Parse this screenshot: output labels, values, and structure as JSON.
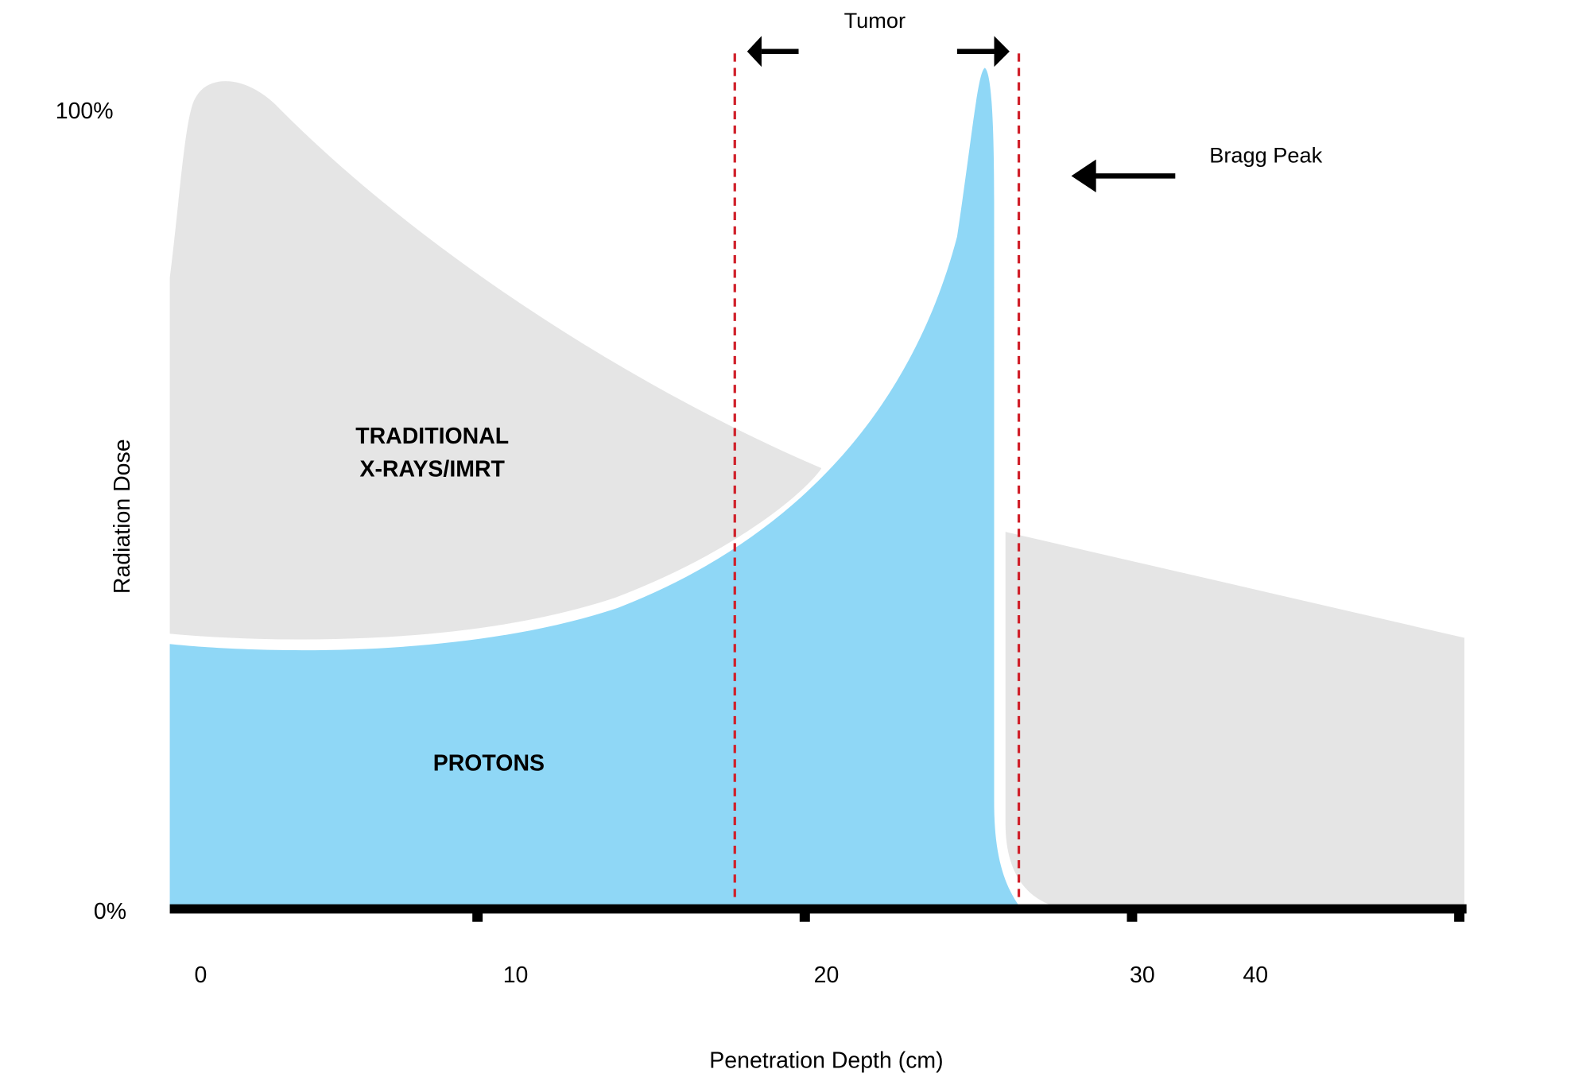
{
  "chart_data": {
    "type": "area",
    "title": "",
    "xlabel": "Penetration Depth (cm)",
    "ylabel": "Radiation Dose",
    "x_tick_labels": [
      "0",
      "10",
      "20",
      "30",
      "40"
    ],
    "y_tick_labels": [
      "100%",
      "0%"
    ],
    "ylim": [
      "0%",
      "100%"
    ],
    "grid": false,
    "legend": "none",
    "region_labels": {
      "xray_line1": "TRADITIONAL",
      "xray_line2": "X-RAYS/IMRT",
      "protons": "PROTONS"
    },
    "annotations": {
      "tumor": "Tumor",
      "bragg_peak": "Bragg Peak"
    },
    "colors": {
      "xray_fill": "#e5e5e5",
      "proton_fill": "#8fd7f6",
      "tumor_lines": "#d0202a",
      "axis": "#000000"
    }
  }
}
